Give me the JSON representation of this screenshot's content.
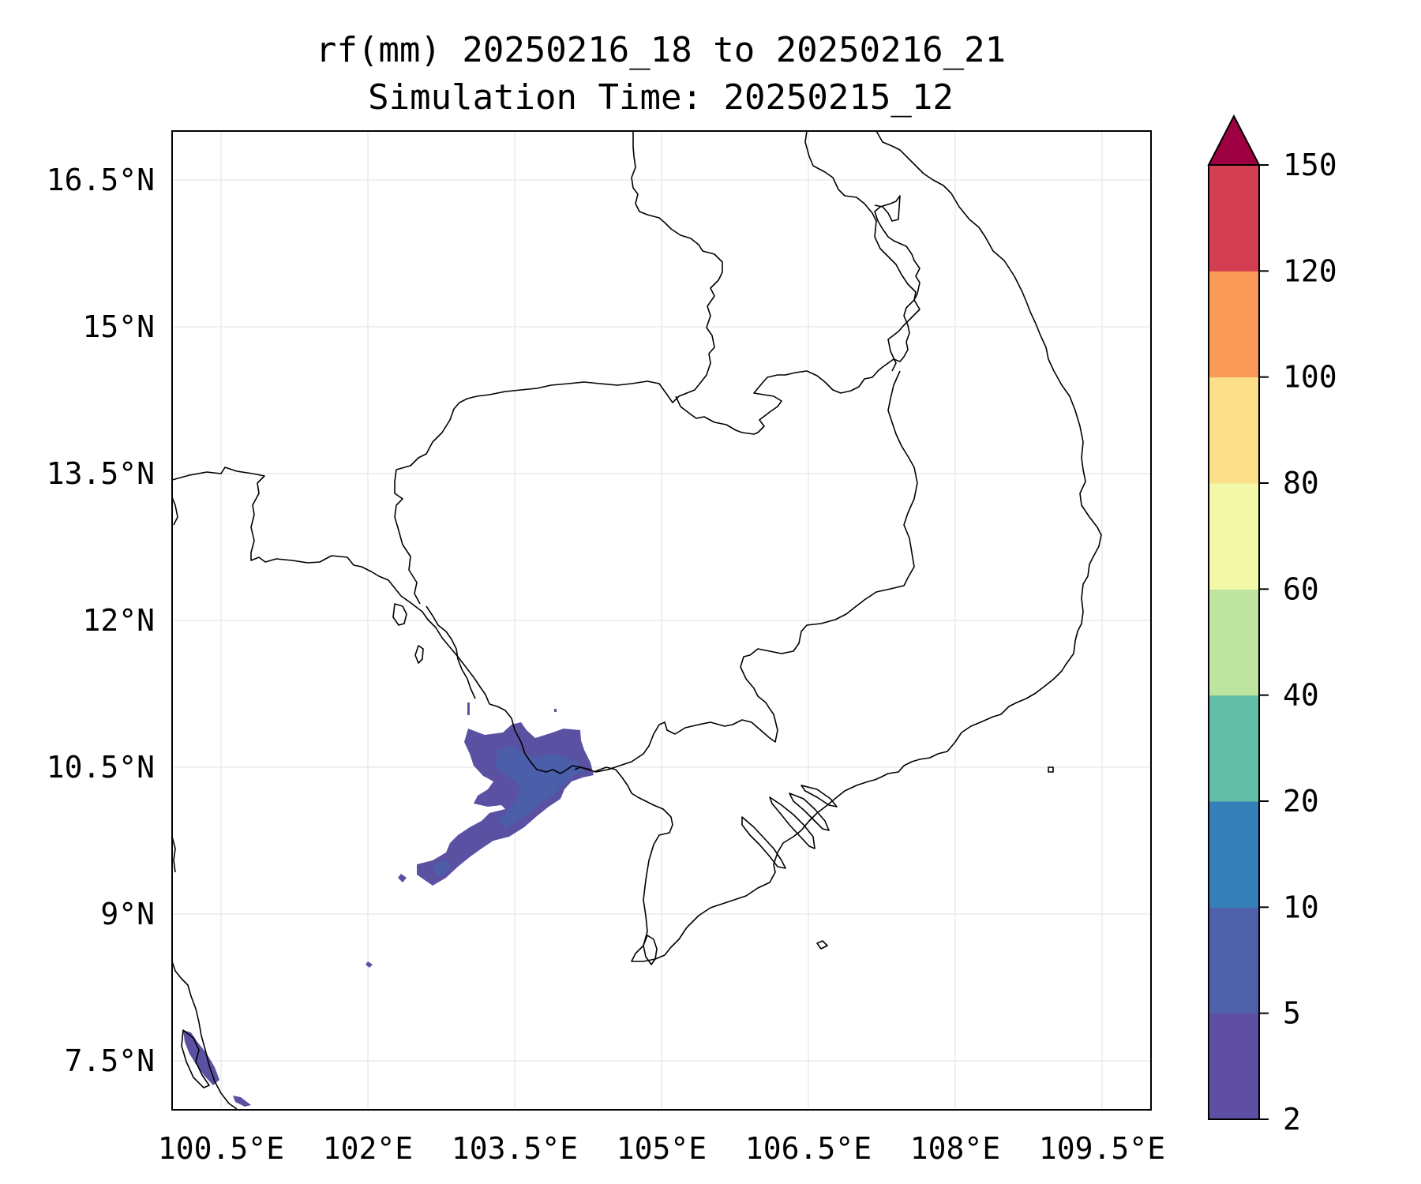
{
  "title": {
    "line1": "rf(mm) 20250216_18 to 20250216_21",
    "line2": "Simulation Time: 20250215_12"
  },
  "map": {
    "lon_range": [
      100.0,
      110.0
    ],
    "lat_range": [
      7.0,
      17.0
    ],
    "gridlines": true,
    "lon_ticks": [
      100.5,
      102.0,
      103.5,
      105.0,
      106.5,
      108.0,
      109.5
    ],
    "lat_ticks": [
      7.5,
      9.0,
      10.5,
      12.0,
      13.5,
      15.0,
      16.5
    ],
    "lon_tick_labels": [
      "100.5°E",
      "102°E",
      "103.5°E",
      "105°E",
      "106.5°E",
      "108°E",
      "109.5°E"
    ],
    "lat_tick_labels": [
      "7.5°N",
      "9°N",
      "10.5°N",
      "12°N",
      "13.5°N",
      "15°N",
      "16.5°N"
    ]
  },
  "colorbar": {
    "levels": [
      2,
      5,
      10,
      20,
      40,
      60,
      80,
      100,
      120,
      150
    ],
    "tick_labels": [
      "2",
      "5",
      "10",
      "20",
      "40",
      "60",
      "80",
      "100",
      "120",
      "150"
    ],
    "colors": [
      "#5e4fa2",
      "#4f61aa",
      "#3580b8",
      "#62bea6",
      "#bee4a0",
      "#f1f9a9",
      "#fbdf8a",
      "#f99a58",
      "#d33e50",
      "#9e0142"
    ],
    "extend": "max"
  },
  "rainfall_region": {
    "main_area_lon": [
      102.5,
      104.8
    ],
    "main_area_lat": [
      9.3,
      11.0
    ],
    "class": "2-5 mm with small 5-10 mm cores"
  }
}
